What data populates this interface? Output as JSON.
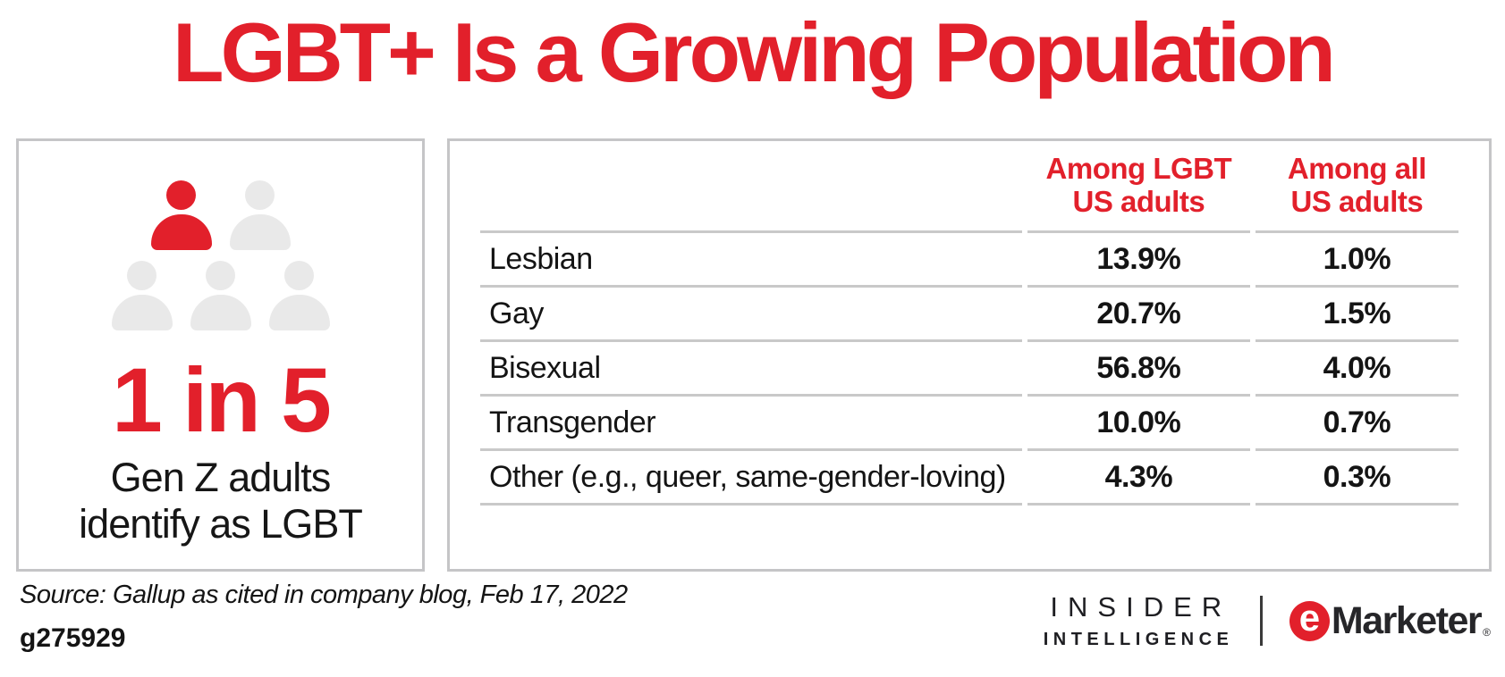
{
  "title": "LGBT+ Is a Growing Population",
  "colors": {
    "accent_red": "#E2202B",
    "icon_gray": "#E9E9E9",
    "box_border": "#C5C5C7",
    "rule_gray": "#C9C9C9"
  },
  "callout": {
    "stat": "1 in 5",
    "description": [
      "Gen Z adults",
      "identify as LGBT"
    ]
  },
  "table": {
    "headers": {
      "col1": [
        "Among LGBT",
        "US adults"
      ],
      "col2": [
        "Among all",
        "US adults"
      ]
    },
    "rows": [
      {
        "label": "Lesbian",
        "among_lgbt": "13.9%",
        "among_all": "1.0%"
      },
      {
        "label": "Gay",
        "among_lgbt": "20.7%",
        "among_all": "1.5%"
      },
      {
        "label": "Bisexual",
        "among_lgbt": "56.8%",
        "among_all": "4.0%"
      },
      {
        "label": "Transgender",
        "among_lgbt": "10.0%",
        "among_all": "0.7%"
      },
      {
        "label": "Other (e.g., queer, same-gender-loving)",
        "among_lgbt": "4.3%",
        "among_all": "0.3%"
      }
    ]
  },
  "chart_data": {
    "type": "table",
    "title": "LGBT+ Is a Growing Population",
    "columns": [
      "",
      "Among LGBT US adults",
      "Among all US adults"
    ],
    "units": "%",
    "rows": [
      [
        "Lesbian",
        13.9,
        1.0
      ],
      [
        "Gay",
        20.7,
        1.5
      ],
      [
        "Bisexual",
        56.8,
        4.0
      ],
      [
        "Transgender",
        10.0,
        0.7
      ],
      [
        "Other (e.g., queer, same-gender-loving)",
        4.3,
        0.3
      ]
    ],
    "annotation": "1 in 5 Gen Z adults identify as LGBT"
  },
  "footer": {
    "source": "Source: Gallup as cited in company blog, Feb 17, 2022",
    "chart_id": "g275929",
    "insider": [
      "INSIDER",
      "INTELLIGENCE"
    ],
    "emarketer": {
      "e": "e",
      "name": "Marketer",
      "registered": "®"
    }
  }
}
